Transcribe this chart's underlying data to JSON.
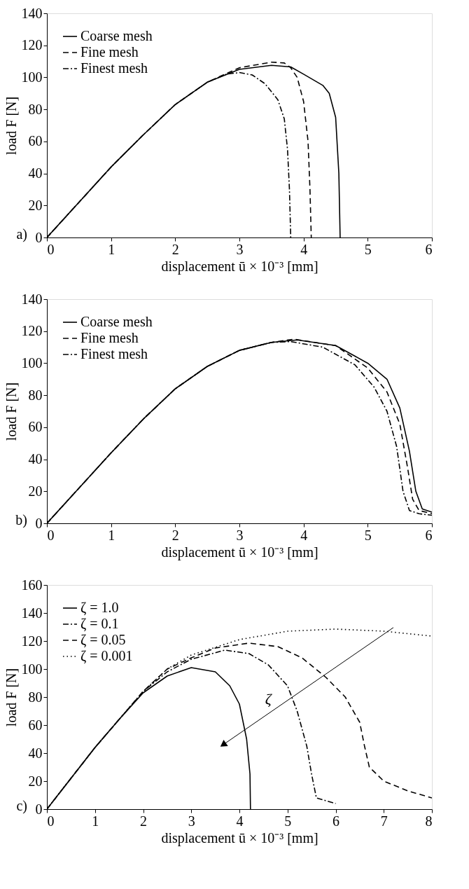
{
  "chart_data": [
    {
      "type": "line",
      "xlabel": "displacement ū × 10⁻³ [mm]",
      "ylabel": "load F [N]",
      "xlim": [
        0,
        6
      ],
      "ylim": [
        0,
        140
      ],
      "xticks": [
        0,
        1,
        2,
        3,
        4,
        5,
        6
      ],
      "yticks": [
        0,
        20,
        40,
        60,
        80,
        100,
        120,
        140
      ],
      "grid": false,
      "legend": "top left",
      "annotations": [
        "a)"
      ],
      "series": [
        {
          "name": "Coarse mesh",
          "color": "#000000",
          "line_style": "solid",
          "x": [
            0,
            0.5,
            1,
            1.5,
            2,
            2.5,
            3,
            3.5,
            3.8,
            4,
            4.3,
            4.4,
            4.5,
            4.55,
            4.57
          ],
          "values": [
            0,
            22,
            44,
            64,
            83,
            97,
            105,
            107.5,
            106.5,
            102,
            95,
            90,
            75,
            40,
            0
          ]
        },
        {
          "name": "Fine mesh",
          "color": "#000000",
          "line_style": "dashed",
          "x": [
            0,
            0.5,
            1,
            1.5,
            2,
            2.5,
            3,
            3.5,
            3.7,
            3.8,
            3.9,
            4.0,
            4.07,
            4.1,
            4.12
          ],
          "values": [
            0,
            22,
            44,
            64,
            83,
            97,
            106,
            109.5,
            109,
            106,
            100,
            85,
            60,
            30,
            0
          ]
        },
        {
          "name": "Finest mesh",
          "color": "#000000",
          "line_style": "dashdot",
          "x": [
            0,
            0.5,
            1,
            1.5,
            2,
            2.5,
            2.8,
            3,
            3.2,
            3.4,
            3.6,
            3.7,
            3.75,
            3.78,
            3.8
          ],
          "values": [
            0,
            22,
            44,
            64,
            83,
            97,
            102,
            103,
            101.5,
            96,
            86,
            74,
            55,
            30,
            0
          ]
        }
      ]
    },
    {
      "type": "line",
      "xlabel": "displacement ū × 10⁻³ [mm]",
      "ylabel": "load F [N]",
      "xlim": [
        0,
        6
      ],
      "ylim": [
        0,
        140
      ],
      "xticks": [
        0,
        1,
        2,
        3,
        4,
        5,
        6
      ],
      "yticks": [
        0,
        20,
        40,
        60,
        80,
        100,
        120,
        140
      ],
      "grid": false,
      "legend": "top left",
      "annotations": [
        "b)"
      ],
      "series": [
        {
          "name": "Coarse mesh",
          "color": "#000000",
          "line_style": "solid",
          "x": [
            0,
            0.5,
            1,
            1.5,
            2,
            2.5,
            3,
            3.5,
            3.9,
            4.5,
            5,
            5.3,
            5.5,
            5.65,
            5.75,
            5.85,
            6
          ],
          "values": [
            0,
            22,
            44,
            65,
            84,
            98,
            108,
            113,
            114.5,
            111,
            100,
            90,
            72,
            45,
            20,
            9,
            7
          ]
        },
        {
          "name": "Fine mesh",
          "color": "#000000",
          "line_style": "dashed",
          "x": [
            0,
            0.5,
            1,
            1.5,
            2,
            2.5,
            3,
            3.5,
            3.85,
            4.5,
            5,
            5.3,
            5.5,
            5.62,
            5.7,
            5.8,
            6
          ],
          "values": [
            0,
            22,
            44,
            65,
            84,
            98,
            108,
            113,
            115,
            111,
            97,
            82,
            62,
            35,
            15,
            8,
            6
          ]
        },
        {
          "name": "Finest mesh",
          "color": "#000000",
          "line_style": "dashdot",
          "x": [
            0,
            0.5,
            1,
            1.5,
            2,
            2.5,
            3,
            3.5,
            3.8,
            4.3,
            4.8,
            5.1,
            5.3,
            5.45,
            5.55,
            5.65,
            5.8,
            6
          ],
          "values": [
            0,
            22,
            44,
            65,
            84,
            98,
            108,
            113,
            113.5,
            110,
            99,
            85,
            70,
            48,
            20,
            8,
            6,
            5
          ]
        }
      ]
    },
    {
      "type": "line",
      "xlabel": "displacement ū × 10⁻³ [mm]",
      "ylabel": "load F [N]",
      "xlim": [
        0,
        8
      ],
      "ylim": [
        0,
        160
      ],
      "xticks": [
        0,
        1,
        2,
        3,
        4,
        5,
        6,
        7,
        8
      ],
      "yticks": [
        0,
        20,
        40,
        60,
        80,
        100,
        120,
        140,
        160
      ],
      "grid": false,
      "legend": "top left",
      "annotations": [
        "c)",
        "ζ"
      ],
      "series": [
        {
          "name": "ζ = 1.0",
          "color": "#000000",
          "line_style": "solid",
          "x": [
            0,
            0.5,
            1,
            1.5,
            2,
            2.5,
            3,
            3.5,
            3.8,
            4,
            4.15,
            4.22,
            4.23
          ],
          "values": [
            0,
            22,
            44,
            64,
            83,
            95,
            101,
            98,
            88,
            75,
            50,
            25,
            0
          ]
        },
        {
          "name": "ζ = 0.1",
          "color": "#000000",
          "line_style": "dashdot",
          "x": [
            0,
            0.5,
            1,
            1.5,
            2,
            2.5,
            3,
            3.7,
            4.2,
            4.6,
            5,
            5.2,
            5.4,
            5.5,
            5.6,
            5.8,
            6
          ],
          "values": [
            0,
            22,
            44,
            64,
            84,
            98,
            107,
            113.5,
            111,
            103,
            88,
            70,
            45,
            25,
            8,
            6,
            4
          ]
        },
        {
          "name": "ζ = 0.05",
          "color": "#000000",
          "line_style": "dashed",
          "x": [
            0,
            0.5,
            1,
            1.5,
            2,
            2.5,
            3,
            3.5,
            4.2,
            4.8,
            5.3,
            5.8,
            6.2,
            6.5,
            6.6,
            6.7,
            7,
            7.5,
            8
          ],
          "values": [
            0,
            22,
            44,
            64,
            84,
            100,
            108,
            115,
            118.5,
            116,
            108,
            94,
            80,
            62,
            45,
            30,
            20,
            13,
            8
          ]
        },
        {
          "name": "ζ = 0.001",
          "color": "#000000",
          "line_style": "dotted",
          "x": [
            0,
            0.5,
            1,
            1.5,
            2,
            2.5,
            3,
            4,
            5,
            6,
            7,
            8
          ],
          "values": [
            0,
            22,
            44,
            64,
            84,
            100,
            110,
            121,
            127,
            128.5,
            127,
            123.5
          ]
        }
      ]
    }
  ]
}
